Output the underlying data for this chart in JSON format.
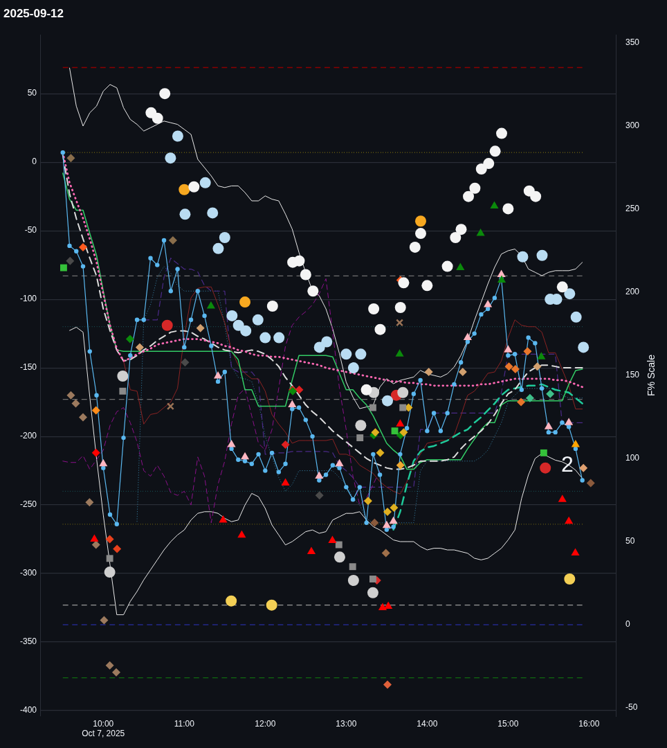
{
  "chart_data": {
    "type": "line",
    "title": "2025-09-12",
    "y2label": "F% Scale",
    "x": [
      9.5,
      9.5833,
      9.6667,
      9.75,
      9.8333,
      9.9167,
      10,
      10.0833,
      10.1667,
      10.25,
      10.3333,
      10.4167,
      10.5,
      10.5833,
      10.6667,
      10.75,
      10.8333,
      10.9167,
      11,
      11.0833,
      11.1667,
      11.25,
      11.3333,
      11.4167,
      11.5,
      11.5833,
      11.6667,
      11.75,
      11.8333,
      11.9167,
      12,
      12.0833,
      12.1667,
      12.25,
      12.3333,
      12.4167,
      12.5,
      12.5833,
      12.6667,
      12.75,
      12.8333,
      12.9167,
      13,
      13.0833,
      13.1667,
      13.25,
      13.3333,
      13.4167,
      13.5,
      13.5833,
      13.6667,
      13.75,
      13.8333,
      13.9167,
      14,
      14.0833,
      14.1667,
      14.25,
      14.3333,
      14.4167,
      14.5,
      14.5833,
      14.6667,
      14.75,
      14.8333,
      14.9167,
      15,
      15.0833,
      15.1667,
      15.25,
      15.3333,
      15.4167,
      15.5,
      15.5833,
      15.6667,
      15.75,
      15.8333,
      15.9167
    ],
    "xlim": [
      9.22,
      16.33
    ],
    "xticks": [
      {
        "value": 10,
        "label": "10:00\nOct 7, 2025"
      },
      {
        "value": 11,
        "label": "11:00"
      },
      {
        "value": 12,
        "label": "12:00"
      },
      {
        "value": 13,
        "label": "13:00"
      },
      {
        "value": 14,
        "label": "14:00"
      },
      {
        "value": 15,
        "label": "15:00"
      },
      {
        "value": 16,
        "label": "16:00"
      }
    ],
    "ylim": [
      -404,
      93
    ],
    "yticks": [
      -400,
      -350,
      -300,
      -250,
      -200,
      -150,
      -100,
      -50,
      0,
      50
    ],
    "y2lim": [
      -55,
      355
    ],
    "y2ticks": [
      -50,
      0,
      50,
      100,
      150,
      200,
      250,
      300,
      350
    ],
    "grid": "y",
    "ref_lines": [
      {
        "axis": "y",
        "value": 69,
        "color": "#8b0000",
        "line_style": "dashed"
      },
      {
        "axis": "y",
        "value": 7,
        "color": "#b8a10a",
        "line_style": "dotted"
      },
      {
        "axis": "y",
        "value": -83,
        "color": "#707070",
        "line_style": "dashed"
      },
      {
        "axis": "y",
        "value": -120,
        "color": "#1e7f80",
        "line_style": "dotted"
      },
      {
        "axis": "y",
        "value": -173,
        "color": "#707070",
        "line_style": "dashed"
      },
      {
        "axis": "y",
        "value": -240,
        "color": "#1e7f80",
        "line_style": "dotted"
      },
      {
        "axis": "y",
        "value": -264,
        "color": "#b8a10a",
        "line_style": "dotted"
      },
      {
        "axis": "y",
        "value": -323,
        "color": "#9a9a9a",
        "line_style": "dashed"
      },
      {
        "axis": "y2",
        "value": 0,
        "color": "#23298c",
        "line_style": "dashed"
      },
      {
        "axis": "y",
        "value": -376,
        "color": "#0f6a0f",
        "line_style": "dashed"
      }
    ],
    "annotations": [
      {
        "text": "2",
        "x": 15.73,
        "y": -221
      }
    ],
    "series": [
      {
        "color": "#5ab8f0",
        "marker": "circle",
        "values": [
          7,
          -61,
          -65,
          -76,
          -138,
          -170,
          -223,
          -257,
          -264,
          -201,
          -141,
          -115,
          -115,
          -70,
          -75,
          -57,
          -94,
          -78,
          -135,
          -115,
          -94,
          -112,
          -134,
          -160,
          -153,
          -209,
          -217,
          -218,
          -220,
          -213,
          -225,
          -212,
          -226,
          -220,
          -180,
          -179,
          -188,
          -200,
          -232,
          -228,
          -221,
          -223,
          -237,
          -246,
          -237,
          -263,
          -213,
          -228,
          -268,
          -266,
          -213,
          -194,
          -169,
          -159,
          -196,
          -183,
          -196,
          -183,
          -162,
          -146,
          -131,
          -125,
          -111,
          -107,
          -99,
          -85,
          -141,
          -140,
          -166,
          -128,
          -132,
          -165,
          -197,
          -197,
          -190,
          -193,
          -209,
          -232
        ]
      },
      {
        "color": "#ff69b4",
        "line_style": "dotted",
        "values": [
          7,
          -15,
          -28,
          -41,
          -56,
          -73,
          -96,
          -119,
          -136,
          -145,
          -143,
          -140,
          -138,
          -136,
          -133,
          -132,
          -131,
          -130,
          -129,
          -129,
          -129,
          -130,
          -131,
          -132,
          -134,
          -135,
          -137,
          -138,
          -140,
          -141,
          -141,
          -142,
          -142,
          -143,
          -144,
          -145,
          -146,
          -147,
          -148,
          -150,
          -151,
          -152,
          -153,
          -154,
          -155,
          -156,
          -157,
          -158,
          -159,
          -160,
          -160,
          -161,
          -161,
          -162,
          -162,
          -163,
          -163,
          -163,
          -163,
          -163,
          -163,
          -163,
          -162,
          -162,
          -161,
          -160,
          -159,
          -158,
          -158,
          -158,
          -158,
          -158,
          -158,
          -159,
          -159,
          -160,
          -162,
          -164
        ]
      },
      {
        "color": "#dddddd",
        "line_style": "dashed",
        "values": [
          5,
          -23,
          -41,
          -56,
          -70,
          -83,
          -107,
          -123,
          -137,
          -145,
          -144,
          -141,
          -137,
          -134,
          -130,
          -127,
          -124,
          -123,
          -123,
          -124,
          -127,
          -129,
          -132,
          -135,
          -137,
          -138,
          -139,
          -138,
          -137,
          -138,
          -140,
          -144,
          -149,
          -157,
          -163,
          -170,
          -177,
          -182,
          -186,
          -191,
          -196,
          -200,
          -204,
          -208,
          -212,
          -216,
          -219,
          -221,
          -223,
          -224,
          -224,
          -223,
          -221,
          -218,
          -218,
          -218,
          -218,
          -217,
          -215,
          -209,
          -204,
          -200,
          -196,
          -191,
          -184,
          -176,
          -169,
          -166,
          -159,
          -153,
          -150,
          -148,
          -148,
          -149,
          -150,
          -150,
          -150,
          -150
        ]
      },
      {
        "color": "#33cc66",
        "values": [
          -8,
          -27,
          -35,
          -35,
          -52,
          -68,
          -94,
          -119,
          -137,
          -138,
          -138,
          -138,
          -138,
          -138,
          -138,
          -138,
          -138,
          -138,
          -138,
          -138,
          -138,
          -138,
          -138,
          -138,
          -138,
          -138,
          -144,
          -166,
          -166,
          -178,
          -178,
          -178,
          -178,
          -178,
          -159,
          -141,
          -141,
          -141,
          -141,
          -141,
          -142,
          -154,
          -166,
          -166,
          -172,
          -177,
          -185,
          -195,
          -205,
          -210,
          -214,
          -224,
          -224,
          -219,
          -217,
          -217,
          -217,
          -217,
          -217,
          -217,
          -209,
          -202,
          -195,
          -190,
          -190,
          -177,
          -174,
          -174,
          -174,
          -174,
          -174,
          -174,
          -174,
          -174,
          -174,
          -162,
          -152,
          -151
        ]
      },
      {
        "color": "#1fc99a",
        "line_style": "dashed",
        "values": [
          null,
          null,
          null,
          null,
          null,
          null,
          null,
          null,
          null,
          null,
          null,
          null,
          null,
          null,
          null,
          null,
          null,
          null,
          null,
          null,
          null,
          null,
          null,
          null,
          null,
          null,
          null,
          null,
          null,
          null,
          null,
          null,
          null,
          null,
          null,
          null,
          null,
          null,
          null,
          null,
          null,
          null,
          null,
          null,
          null,
          null,
          null,
          null,
          null,
          -268,
          -255,
          -235,
          -218,
          -211,
          -208,
          -207,
          -205,
          -203,
          -200,
          -197,
          -195,
          -190,
          -186,
          -181,
          -176,
          -170,
          -166,
          -165,
          -164,
          -163,
          -163,
          -162,
          -164,
          -166,
          -167,
          -168,
          -172,
          -176
        ]
      },
      {
        "color": "#8b2323",
        "values": [
          null,
          null,
          null,
          null,
          null,
          null,
          null,
          null,
          null,
          -145,
          -166,
          -167,
          -191,
          -184,
          -183,
          -179,
          -175,
          -165,
          -127,
          -99,
          -92,
          -91,
          -91,
          -104,
          -117,
          -137,
          -148,
          -154,
          -158,
          -158,
          -167,
          -184,
          -191,
          -197,
          -205,
          -203,
          -203,
          -203,
          -203,
          -203,
          -202,
          -213,
          -213,
          -215,
          -221,
          -224,
          -227,
          -233,
          -237,
          -240,
          -242,
          -233,
          -221,
          -213,
          -205,
          -204,
          -203,
          -203,
          -199,
          -185,
          -170,
          -167,
          -161,
          -154,
          -153,
          -145,
          -128,
          -115,
          -119,
          -120,
          -120,
          -124,
          -139,
          -139,
          -151,
          -163,
          -180,
          -180
        ]
      },
      {
        "color": "#8b108b",
        "line_style": "dashed",
        "values": [
          -218,
          -219,
          -219,
          -214,
          -224,
          -217,
          -210,
          -192,
          -182,
          -179,
          -190,
          -204,
          -225,
          -229,
          -221,
          -229,
          -241,
          -243,
          -240,
          -250,
          -215,
          -229,
          -263,
          -235,
          -218,
          -191,
          -170,
          -165,
          -185,
          -205,
          -210,
          -195,
          -165,
          -134,
          -119,
          -113,
          -109,
          -104,
          -96,
          -85,
          -124,
          -165,
          -195,
          -229,
          -250,
          -245,
          -235,
          -225,
          null,
          null,
          null,
          null,
          null,
          null,
          null,
          null,
          null,
          null,
          null,
          null,
          null,
          null,
          null,
          null,
          null,
          null,
          null,
          null,
          null,
          null,
          null,
          null,
          null,
          null,
          null,
          null,
          null,
          null
        ]
      },
      {
        "color": "#4b2a88",
        "line_style": "dashed",
        "values": [
          null,
          null,
          null,
          null,
          null,
          null,
          null,
          null,
          null,
          null,
          null,
          null,
          -115,
          -115,
          -115,
          -84,
          -70,
          -74,
          -78,
          -78,
          -80,
          -90,
          -94,
          -94,
          -94,
          -150,
          -153,
          -153,
          -153,
          -159,
          -213,
          -213,
          -212,
          -212,
          -211,
          -211,
          -211,
          -211,
          -211,
          -211,
          -212,
          -221,
          -225,
          -230,
          -237,
          -237,
          -237,
          -237,
          -237,
          -237,
          -237,
          -237,
          -237,
          -195,
          -195,
          -183,
          -183,
          -183,
          -183,
          -183,
          -183,
          -183,
          -183,
          -183,
          -183,
          -168,
          -140,
          -140,
          -140,
          -140,
          -140,
          -140,
          -140,
          -140,
          -190,
          -190,
          -190,
          -190
        ]
      },
      {
        "color": "#2f6f8f",
        "line_style": "dotted",
        "values": [
          null,
          null,
          null,
          null,
          null,
          null,
          null,
          null,
          null,
          null,
          null,
          -262,
          -115,
          -104,
          -84,
          -76,
          -81,
          -90,
          -94,
          -94,
          -94,
          -94,
          -94,
          -94,
          -119,
          -149,
          -157,
          -158,
          -160,
          -175,
          -200,
          -215,
          -230,
          -240,
          -235,
          -225,
          -225,
          -225,
          -225,
          -225,
          -225,
          -230,
          -235,
          -245,
          -250,
          -260,
          -263,
          -263,
          -263,
          -263,
          -263,
          -263,
          -263,
          -225,
          -218,
          -218,
          -218,
          -218,
          -218,
          -218,
          -218,
          -218,
          -215,
          -210,
          -200,
          -190,
          -175,
          -170,
          -165,
          -165,
          -165,
          -165,
          -165,
          -165,
          -170,
          -172,
          -172,
          -172
        ]
      },
      {
        "color": "#e8e8e8",
        "axis": "y2",
        "values": [
          null,
          335,
          312,
          300,
          308,
          312,
          321,
          325,
          323,
          311,
          304,
          301,
          297,
          299,
          301,
          303,
          302,
          301,
          298,
          295,
          280,
          275,
          270,
          264,
          263,
          264,
          264,
          260,
          255,
          255,
          258,
          256,
          255,
          247,
          238,
          224,
          212,
          201,
          198,
          190,
          178,
          163,
          146,
          137,
          130,
          131,
          132,
          143,
          148,
          145,
          147,
          148,
          149,
          153,
          151,
          150,
          149,
          151,
          155,
          162,
          171,
          183,
          194,
          205,
          215,
          223,
          225,
          226,
          222,
          214,
          212,
          210,
          212,
          213,
          213,
          213,
          214,
          218
        ]
      },
      {
        "color": "#e8e8e8",
        "axis": "y2",
        "values": [
          null,
          177,
          179,
          176,
          137,
          100,
          66,
          36,
          6,
          6,
          14,
          20,
          27,
          33,
          39,
          45,
          50,
          54,
          57,
          63,
          67,
          68,
          68,
          67,
          64,
          62,
          63,
          72,
          79,
          77,
          70,
          60,
          54,
          48,
          50,
          53,
          56,
          57,
          55,
          56,
          63,
          65,
          67,
          67,
          68,
          63,
          59,
          57,
          54,
          51,
          50,
          50,
          50,
          47,
          45,
          46,
          46,
          45,
          45,
          44,
          43,
          40,
          39,
          40,
          43,
          46,
          51,
          57,
          76,
          90,
          100,
          103,
          101,
          99,
          98,
          96,
          93,
          88
        ]
      },
      {
        "type": "scatter",
        "marker": "circle",
        "color": "#f4f4f4",
        "x": [
          10.76,
          10.59,
          10.67,
          12.34,
          12.42,
          12.5,
          12.59,
          12.09,
          13.34,
          13.67,
          13.42,
          13.25,
          13.71,
          14,
          13.85,
          13.92,
          14.35,
          14.42,
          14.25,
          14.51,
          14.59,
          14.67,
          14.76,
          14.84,
          14.92,
          15,
          15.26,
          15.34,
          15.67,
          11.12
        ],
        "values": [
          50,
          36,
          32,
          -73,
          -72,
          -82,
          -94,
          -105,
          -107,
          -106,
          -122,
          -166,
          -88,
          -90,
          -62,
          -52,
          -55,
          -49,
          -76,
          -25,
          -19,
          -5,
          -1,
          8,
          21,
          -34,
          -21,
          -25,
          -91,
          -18
        ]
      },
      {
        "type": "scatter",
        "marker": "circle",
        "color": "#b9dcf2",
        "x": [
          10.92,
          10.83,
          11.26,
          11.01,
          11.35,
          11.5,
          11.42,
          11.59,
          11.67,
          11.76,
          11.91,
          12,
          12.17,
          12.67,
          12.76,
          13,
          13.18,
          13.09,
          13.51,
          15.18,
          15.42,
          15.52,
          15.6,
          15.76,
          15.84,
          15.93
        ],
        "values": [
          19,
          3,
          -15,
          -38,
          -37,
          -55,
          -63,
          -112,
          -119,
          -123,
          -115,
          -128,
          -128,
          -135,
          -131,
          -140,
          -140,
          -150,
          -174,
          -69,
          -68,
          -100,
          -100,
          -96,
          -113,
          -135
        ]
      },
      {
        "type": "scatter",
        "marker": "circle",
        "color": "#f7a820",
        "x": [
          11,
          11.75,
          13.92
        ],
        "values": [
          -20,
          -102,
          -43
        ]
      },
      {
        "type": "scatter",
        "marker": "triangle",
        "color": "#ff0000",
        "x": [
          9.89,
          11.48,
          11.71,
          12.25,
          12.57,
          12.83,
          13.45,
          13.52,
          15.67,
          15.75,
          15.83
        ],
        "values": [
          -275,
          -261,
          -272,
          -234,
          -284,
          -276,
          -325,
          -324,
          -246,
          -262,
          -285
        ]
      },
      {
        "type": "scatter",
        "marker": "triangle",
        "color": "#0b8a0b",
        "x": [
          14.83,
          14.66,
          14.41,
          14.92,
          11.33,
          13.66,
          15.41
        ],
        "values": [
          -32,
          -52,
          -77,
          -86,
          -105,
          -140,
          -142
        ]
      },
      {
        "type": "scatter",
        "marker": "circle",
        "color": "#f3cf55",
        "x": [
          11.58,
          12.08,
          15.76
        ],
        "values": [
          -320,
          -323,
          -304
        ]
      },
      {
        "type": "scatter",
        "marker": "diamond",
        "color": "#9c7a5e",
        "x": [
          9.6,
          9.66,
          9.75,
          9.83,
          9.91,
          10.01,
          10.08,
          10.16
        ],
        "values": [
          -170,
          -176,
          -186,
          -248,
          -279,
          -334,
          -367,
          -372
        ]
      },
      {
        "type": "scatter",
        "marker": "square",
        "color": "#8a8a8a",
        "x": [
          10.24,
          13.33,
          13.7,
          13.17,
          10.08,
          12.91,
          13.08,
          13.33
        ],
        "values": [
          -167,
          -179,
          -179,
          -201,
          -289,
          -279,
          -295,
          -304
        ]
      },
      {
        "type": "scatter",
        "marker": "circle",
        "color": "#cfcfcf",
        "x": [
          10.24,
          13.34,
          13.7,
          13.18,
          10.08,
          12.92,
          13.09,
          13.33
        ],
        "values": [
          -156,
          -168,
          -168,
          -192,
          -299,
          -288,
          -305,
          -314
        ]
      },
      {
        "type": "scatter",
        "marker": "circle",
        "color": "#d62828",
        "x": [
          10.79,
          13.62,
          15.46
        ],
        "values": [
          -119,
          -170,
          -223
        ]
      },
      {
        "type": "scatter",
        "marker": "diamond",
        "color": "#d2a06f",
        "x": [
          10.45,
          11.2,
          14.02,
          14.44,
          15.36
        ],
        "values": [
          -135,
          -121,
          -153,
          -153,
          -149
        ]
      },
      {
        "type": "scatter",
        "marker": "cross",
        "color": "#9a7356",
        "x": [
          10.83,
          13.66
        ],
        "values": [
          -178,
          -117
        ]
      },
      {
        "type": "scatter",
        "marker": "diamond",
        "color": "#e0b020",
        "x": [
          13.36,
          13.71,
          13.42,
          13.27,
          13.51,
          13.59,
          13.77
        ],
        "values": [
          -197,
          -197,
          -212,
          -247,
          -255,
          -252,
          -179
        ]
      },
      {
        "type": "scatter",
        "marker": "square",
        "color": "#35c13a",
        "x": [
          9.51,
          13.6,
          15.44
        ],
        "values": [
          -77,
          -196,
          -212
        ]
      },
      {
        "type": "scatter",
        "marker": "triangle",
        "x": [
          10,
          11.4167,
          11.5833,
          11.75,
          12.3333,
          12.6667,
          12.9167,
          13.5,
          13.5833,
          14.5,
          14.75,
          14.9167,
          15,
          15.5,
          15.75,
          15.8333,
          13.6667
        ],
        "values": [
          -220,
          -156,
          -206,
          -215,
          -177,
          -229,
          -220,
          -265,
          -262,
          -128,
          -104,
          -82,
          -137,
          -193,
          -190,
          -206,
          -191
        ],
        "colors": [
          "#ffb6c1",
          "#ffb6c1",
          "#ffb6c1",
          "#ffb6c1",
          "#ffb6c1",
          "#ffb6c1",
          "#ffb6c1",
          "#ffb6c1",
          "#ffb6c1",
          "#ffb6c1",
          "#ffb6c1",
          "#ffb6c1",
          "#ffb6c1",
          "#ffb6c1",
          "#ffb6c1",
          "#ffa500",
          "#ff0000"
        ]
      },
      {
        "type": "scatter",
        "marker": "diamond",
        "x": [
          9.75,
          13.67,
          9.91,
          10.08,
          10.17,
          9.6,
          10.86,
          15.24,
          15.01,
          15.09,
          15.16,
          15.27,
          15.52,
          13.67,
          13.35,
          16.02,
          13.51,
          13.38,
          9.91,
          15.93,
          13.49,
          12.34,
          12.42,
          12.25,
          10.33,
          12.34,
          13.34,
          13.67,
          9.59,
          11.01,
          12.67
        ],
        "values": [
          -62,
          -86,
          -181,
          -275,
          -282,
          3,
          -57,
          -138,
          -149,
          -151,
          -175,
          -172,
          -169,
          -221,
          -263,
          -234,
          -381,
          -305,
          -212,
          -223,
          -285,
          -166,
          -166,
          -206,
          -129,
          -167,
          -199,
          -199,
          -72,
          -146,
          -243
        ],
        "colors": [
          "#ff5a1f",
          "#ff5a1f",
          "#ff8c1a",
          "#e8401c",
          "#e8401c",
          "#8a6e4b",
          "#8a6e4b",
          "#e8762b",
          "#e8762b",
          "#e8762b",
          "#e8762b",
          "#3fbf8a",
          "#3fbf8a",
          "#f0a830",
          "#8b5a3c",
          "#8b5a3c",
          "#e0603a",
          "#d92b2b",
          "#ff0000",
          "#e0a070",
          "#a0704a",
          "#e02020",
          "#e02020",
          "#e02020",
          "#0b8a0b",
          "#0b8a0b",
          "#0b8a0b",
          "#0b8a0b",
          "#4a4a4a",
          "#4a4a4a",
          "#4a4a4a"
        ]
      }
    ]
  }
}
